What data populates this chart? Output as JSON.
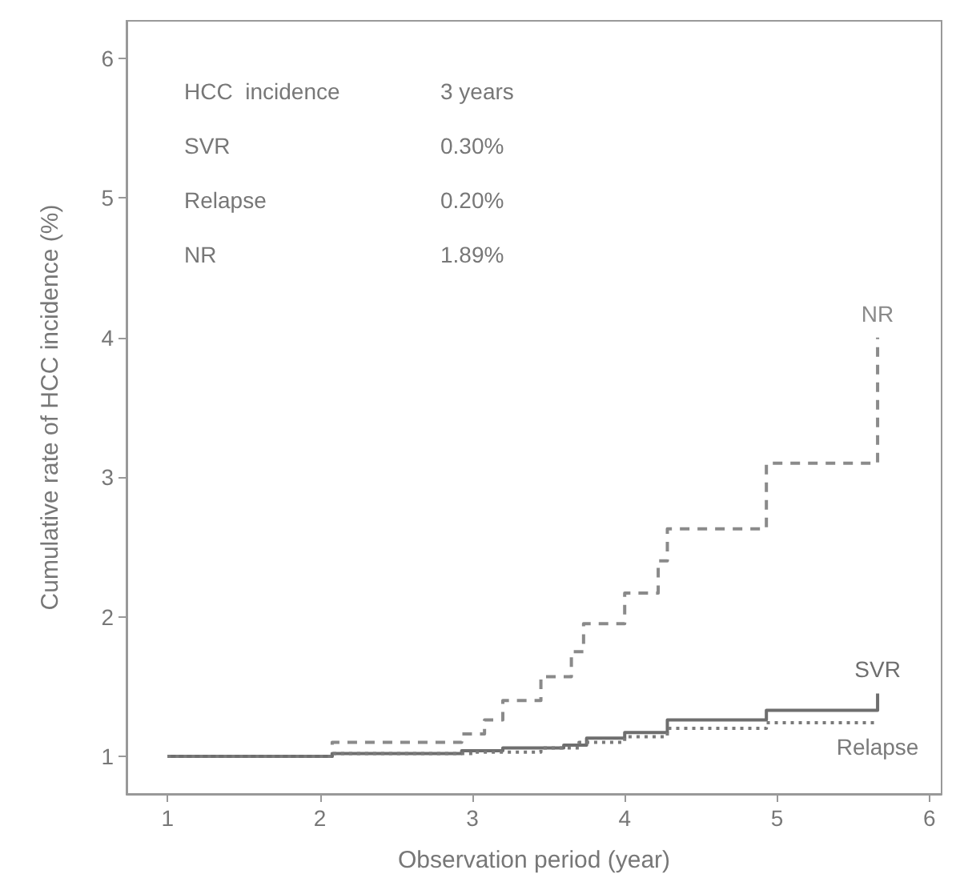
{
  "chart_data": {
    "type": "step",
    "xlabel": "Observation period (year)",
    "ylabel": "Cumulative rate of HCC incidence (%)",
    "xlim": [
      0.73,
      6.08
    ],
    "ylim": [
      0.73,
      6.27
    ],
    "xticks": [
      1,
      2,
      3,
      4,
      5,
      6
    ],
    "yticks": [
      1,
      2,
      3,
      4,
      5,
      6
    ],
    "grid": false,
    "legend": false,
    "marker": "none",
    "annotations": [
      "HCC  incidence",
      "3 years",
      "SVR",
      "0.30%",
      "Relapse",
      "0.20%",
      "NR",
      "1.89%"
    ],
    "series": [
      {
        "name": "NR",
        "color": "#8a8a8a",
        "line_style": "dashed",
        "x": [
          1,
          2.08,
          2.93,
          3.08,
          3.2,
          3.45,
          3.65,
          3.73,
          4.0,
          4.22,
          4.28,
          4.93,
          5.66
        ],
        "values": [
          1.0,
          1.1,
          1.16,
          1.26,
          1.4,
          1.57,
          1.75,
          1.95,
          2.17,
          2.4,
          2.63,
          3.1,
          4.0
        ]
      },
      {
        "name": "SVR",
        "color": "#6e6e6e",
        "line_style": "solid",
        "x": [
          1,
          2.08,
          2.93,
          3.2,
          3.6,
          3.75,
          4.0,
          4.28,
          4.93,
          5.66
        ],
        "values": [
          1.0,
          1.02,
          1.04,
          1.06,
          1.08,
          1.13,
          1.17,
          1.26,
          1.33,
          1.45
        ]
      },
      {
        "name": "Relapse",
        "color": "#7a7a7a",
        "line_style": "dotted",
        "x": [
          1,
          2.08,
          3.0,
          3.45,
          3.7,
          4.0,
          4.28,
          4.93,
          5.66
        ],
        "values": [
          1.0,
          1.02,
          1.03,
          1.06,
          1.1,
          1.14,
          1.2,
          1.24,
          1.24
        ]
      }
    ]
  }
}
